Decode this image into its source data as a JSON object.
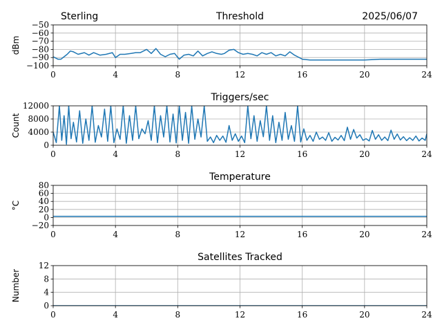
{
  "header": {
    "station": "Sterling",
    "date": "2025/06/07"
  },
  "colors": {
    "line": "#1f77b4",
    "grid": "#b0b0b0",
    "axis": "#000000"
  },
  "chart_data": [
    {
      "id": "threshold",
      "type": "line",
      "title": "Threshold",
      "ylabel": "dBm",
      "xlim": [
        0,
        24
      ],
      "ylim": [
        -100,
        -50
      ],
      "xticks": [
        0,
        4,
        8,
        12,
        16,
        20,
        24
      ],
      "yticks": [
        -100,
        -90,
        -80,
        -70,
        -60,
        -50
      ],
      "yticklabels": [
        "−100",
        "−90",
        "−80",
        "−70",
        "−60",
        "−50"
      ],
      "grid": true,
      "series": [
        {
          "x": [
            0,
            0.3,
            0.5,
            0.7,
            0.9,
            1.1,
            1.3,
            1.6,
            2,
            2.3,
            2.6,
            3,
            3.4,
            3.8,
            4,
            4.3,
            4.6,
            5,
            5.3,
            5.6,
            6,
            6.3,
            6.6,
            6.9,
            7.2,
            7.5,
            7.8,
            8.1,
            8.4,
            8.7,
            9,
            9.3,
            9.6,
            9.9,
            10.2,
            10.5,
            10.8,
            11,
            11.3,
            11.6,
            11.9,
            12.2,
            12.5,
            12.8,
            13.1,
            13.4,
            13.7,
            14,
            14.3,
            14.6,
            14.9,
            15.2,
            15.5,
            15.7,
            16,
            16.5,
            17,
            18,
            19,
            20,
            21,
            22,
            23,
            24
          ],
          "y": [
            -89,
            -92,
            -92,
            -89,
            -86,
            -82,
            -83,
            -86,
            -84,
            -87,
            -84,
            -87,
            -86,
            -84,
            -90,
            -86,
            -86,
            -85,
            -84,
            -84,
            -80,
            -85,
            -79,
            -86,
            -89,
            -86,
            -85,
            -92,
            -87,
            -86,
            -88,
            -82,
            -88,
            -85,
            -83,
            -85,
            -86,
            -85,
            -81,
            -80,
            -84,
            -86,
            -85,
            -86,
            -88,
            -84,
            -86,
            -84,
            -88,
            -86,
            -88,
            -83,
            -87,
            -89,
            -92,
            -93,
            -93,
            -93,
            -93,
            -93,
            -92,
            -92,
            -92,
            -92
          ]
        }
      ]
    },
    {
      "id": "triggers",
      "type": "line",
      "title": "Triggers/sec",
      "ylabel": "Count",
      "xlim": [
        0,
        24
      ],
      "ylim": [
        0,
        12000
      ],
      "xticks": [
        0,
        4,
        8,
        12,
        16,
        20,
        24
      ],
      "yticks": [
        0,
        4000,
        8000,
        12000
      ],
      "grid": true,
      "series": [
        {
          "x": [
            0,
            0.2,
            0.4,
            0.55,
            0.7,
            0.85,
            1,
            1.15,
            1.3,
            1.5,
            1.7,
            1.9,
            2.1,
            2.3,
            2.5,
            2.7,
            2.9,
            3.1,
            3.3,
            3.5,
            3.7,
            3.9,
            4.1,
            4.3,
            4.5,
            4.7,
            4.9,
            5.1,
            5.3,
            5.5,
            5.7,
            5.9,
            6.1,
            6.3,
            6.5,
            6.7,
            6.9,
            7.1,
            7.3,
            7.5,
            7.7,
            7.9,
            8.1,
            8.3,
            8.5,
            8.7,
            8.9,
            9.1,
            9.3,
            9.5,
            9.7,
            9.9,
            10.1,
            10.3,
            10.5,
            10.7,
            10.9,
            11.1,
            11.3,
            11.5,
            11.7,
            11.9,
            12.1,
            12.3,
            12.5,
            12.7,
            12.9,
            13.1,
            13.3,
            13.5,
            13.7,
            13.9,
            14.1,
            14.3,
            14.5,
            14.7,
            14.9,
            15.1,
            15.3,
            15.5,
            15.7,
            15.9,
            16.1,
            16.3,
            16.5,
            16.7,
            16.9,
            17.1,
            17.3,
            17.5,
            17.7,
            17.9,
            18.1,
            18.3,
            18.5,
            18.7,
            18.9,
            19.1,
            19.3,
            19.5,
            19.7,
            19.9,
            20.1,
            20.3,
            20.5,
            20.7,
            20.9,
            21.1,
            21.3,
            21.5,
            21.7,
            21.9,
            22.1,
            22.3,
            22.5,
            22.7,
            22.9,
            23.1,
            23.3,
            23.5,
            23.7,
            23.9,
            24
          ],
          "y": [
            4000,
            800,
            12000,
            1500,
            9000,
            300,
            12000,
            2000,
            7000,
            1000,
            10500,
            600,
            8000,
            1500,
            12000,
            900,
            6000,
            2500,
            11000,
            1200,
            12000,
            800,
            5000,
            1800,
            12000,
            600,
            9000,
            1500,
            12000,
            2000,
            5000,
            3500,
            7500,
            1500,
            12000,
            800,
            9000,
            2500,
            12000,
            1000,
            9500,
            700,
            12000,
            1500,
            10000,
            600,
            12000,
            1800,
            8000,
            2500,
            12000,
            1200,
            2500,
            800,
            3000,
            1500,
            2800,
            900,
            6000,
            1500,
            3500,
            1200,
            2800,
            800,
            12000,
            2000,
            9000,
            1200,
            7500,
            2600,
            12000,
            1500,
            9000,
            800,
            7000,
            1500,
            10000,
            1800,
            6000,
            1200,
            12000,
            1000,
            5000,
            1500,
            3000,
            1200,
            4000,
            1800,
            2500,
            1500,
            3800,
            1200,
            2400,
            1600,
            3000,
            1400,
            5500,
            1800,
            4800,
            2200,
            3200,
            1500,
            2000,
            1300,
            4500,
            1800,
            3200,
            1500,
            2500,
            1400,
            4600,
            1800,
            3400,
            1600,
            2600,
            1400,
            2300,
            1500,
            2800,
            1300,
            2200,
            1500,
            3500
          ]
        }
      ]
    },
    {
      "id": "temperature",
      "type": "line",
      "title": "Temperature",
      "ylabel": "°C",
      "xlim": [
        0,
        24
      ],
      "ylim": [
        -20,
        80
      ],
      "xticks": [
        0,
        4,
        8,
        12,
        16,
        20,
        24
      ],
      "yticks": [
        -20,
        0,
        20,
        40,
        60,
        80
      ],
      "yticklabels": [
        "−20",
        "0",
        "20",
        "40",
        "60",
        "80"
      ],
      "grid": true,
      "series": [
        {
          "x": [
            0,
            24
          ],
          "y": [
            3,
            3
          ]
        }
      ]
    },
    {
      "id": "satellites",
      "type": "line",
      "title": "Satellites Tracked",
      "ylabel": "Number",
      "xlim": [
        0,
        24
      ],
      "ylim": [
        0,
        12
      ],
      "xticks": [
        0,
        4,
        8,
        12,
        16,
        20,
        24
      ],
      "yticks": [
        0,
        4,
        8,
        12
      ],
      "grid": true,
      "series": [
        {
          "x": [
            0,
            24
          ],
          "y": [
            0,
            0
          ]
        }
      ]
    }
  ]
}
